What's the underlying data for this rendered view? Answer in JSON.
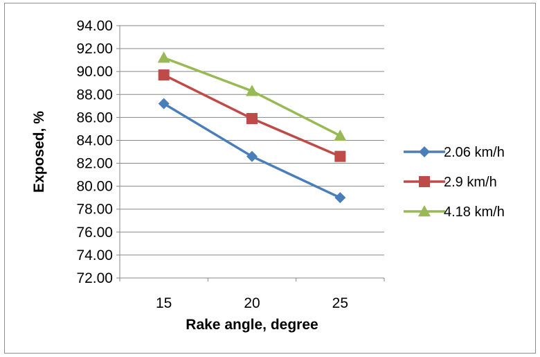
{
  "chart_data": {
    "type": "line",
    "xlabel": "Rake angle, degree",
    "ylabel": "Exposed, %",
    "categories": [
      "15",
      "20",
      "25"
    ],
    "ylim": [
      72,
      94
    ],
    "yticks": [
      "72.00",
      "74.00",
      "76.00",
      "78.00",
      "80.00",
      "82.00",
      "84.00",
      "86.00",
      "88.00",
      "90.00",
      "92.00",
      "94.00"
    ],
    "ytick_values": [
      72,
      74,
      76,
      78,
      80,
      82,
      84,
      86,
      88,
      90,
      92,
      94
    ],
    "grid": "horizontal",
    "legend_position": "right",
    "series": [
      {
        "name": "2.06 km/h",
        "values": [
          87.2,
          82.6,
          79.0
        ],
        "color": "#4a7ebb",
        "marker": "diamond"
      },
      {
        "name": "2.9 km/h",
        "values": [
          89.7,
          85.9,
          82.6
        ],
        "color": "#be4b48",
        "marker": "square"
      },
      {
        "name": "4.18 km/h",
        "values": [
          91.2,
          88.3,
          84.4
        ],
        "color": "#98b954",
        "marker": "triangle"
      }
    ]
  }
}
